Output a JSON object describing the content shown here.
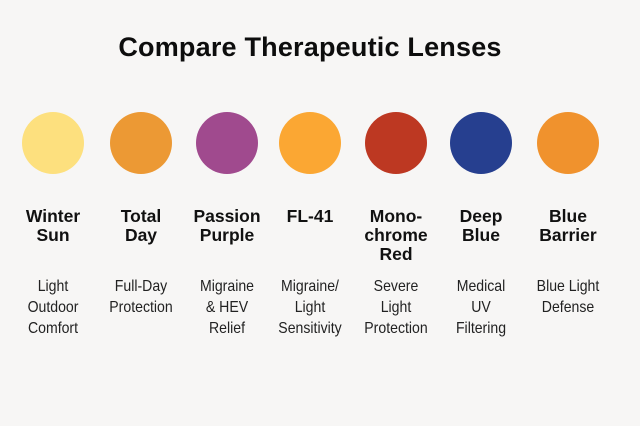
{
  "title": "Compare Therapeutic Lenses",
  "lenses": [
    {
      "name": "Winter\nSun",
      "description": "Light\nOutdoor\nComfort",
      "color": "#fde07e"
    },
    {
      "name": "Total\nDay",
      "description": "Full-Day\nProtection",
      "color": "#ec9934"
    },
    {
      "name": "Passion\nPurple",
      "description": "Migraine\n& HEV\nRelief",
      "color": "#a04a8e"
    },
    {
      "name": "FL-41",
      "description": "Migraine/\nLight\nSensitivity",
      "color": "#fba733"
    },
    {
      "name": "Mono-\nchrome\nRed",
      "description": "Severe\nLight\nProtection",
      "color": "#bd3822"
    },
    {
      "name": "Deep\nBlue",
      "description": "Medical\nUV\nFiltering",
      "color": "#263f8f"
    },
    {
      "name": "Blue\nBarrier",
      "description": "Blue Light\nDefense",
      "color": "#f0922d"
    }
  ]
}
